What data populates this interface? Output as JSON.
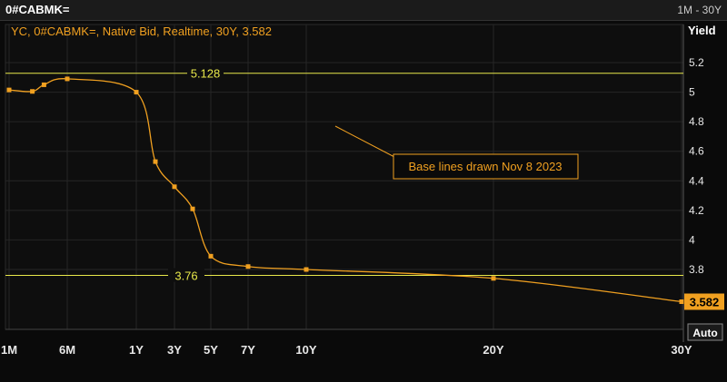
{
  "header": {
    "ticker": "0#CABMK=",
    "range": "1M - 30Y"
  },
  "chart_data": {
    "type": "line",
    "legend": "YC, 0#CABMK=, Native Bid, Realtime, 30Y, 3.582",
    "ylabel": "Yield",
    "ylim": [
      3.4,
      5.3
    ],
    "yticks": [
      3.8,
      4,
      4.2,
      4.4,
      4.6,
      4.8,
      5,
      5.2
    ],
    "ytick_labels": [
      "3.8",
      "4",
      "4.2",
      "4.4",
      "4.6",
      "4.8",
      "5",
      "5.2"
    ],
    "x_unit": "years",
    "xticks": [
      {
        "label": "1M",
        "x": 0.0833
      },
      {
        "label": "6M",
        "x": 0.5
      },
      {
        "label": "1Y",
        "x": 1
      },
      {
        "label": "3Y",
        "x": 3
      },
      {
        "label": "5Y",
        "x": 5
      },
      {
        "label": "7Y",
        "x": 7
      },
      {
        "label": "10Y",
        "x": 10
      },
      {
        "label": "20Y",
        "x": 20
      },
      {
        "label": "30Y",
        "x": 30
      }
    ],
    "series": [
      {
        "color": "#f0a020",
        "points": [
          {
            "x": 0.0833,
            "y": 5.015
          },
          {
            "x": 0.25,
            "y": 5.005
          },
          {
            "x": 0.3333,
            "y": 5.05
          },
          {
            "x": 0.5,
            "y": 5.09
          },
          {
            "x": 1.0,
            "y": 5.0
          },
          {
            "x": 2.0,
            "y": 4.53
          },
          {
            "x": 3.0,
            "y": 4.36
          },
          {
            "x": 4.0,
            "y": 4.21
          },
          {
            "x": 5.0,
            "y": 3.89
          },
          {
            "x": 7.0,
            "y": 3.82
          },
          {
            "x": 10.0,
            "y": 3.8
          },
          {
            "x": 20.0,
            "y": 3.74
          },
          {
            "x": 30.0,
            "y": 3.582
          }
        ]
      }
    ],
    "baselines": [
      {
        "value": 5.128,
        "label": "5.128",
        "color": "#e8e84a"
      },
      {
        "value": 3.76,
        "label": "3.76",
        "color": "#e8e84a"
      }
    ],
    "annotation": "Base lines drawn Nov 8 2023",
    "last_value": "3.582",
    "auto_button": "Auto",
    "grid": true
  }
}
